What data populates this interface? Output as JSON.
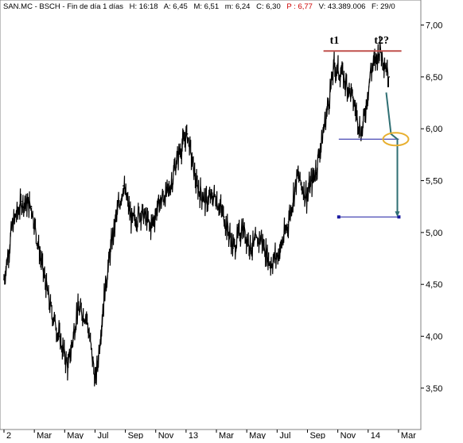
{
  "header": {
    "ticker": "SAN.MC - BSCH - Fin de día 1 días",
    "high": "H: 16:18",
    "open": "A: 6,45",
    "max": "M: 6,51",
    "min": "m: 6,24",
    "close": "C: 6,30",
    "price": "P : 6,77",
    "volume": "V: 43.389.006",
    "date": "F: 29/0"
  },
  "colors": {
    "price_series": "#000000",
    "resistance_line": "#c0504d",
    "support_lines": "#1a1aa0",
    "projection_arrow": "#2f6f73",
    "breakout_ellipse": "#e8b030",
    "header_accent": "#cc0000"
  },
  "chart_data": {
    "type": "line",
    "title": "",
    "xlabel": "",
    "ylabel": "",
    "ylim": [
      3.3,
      7.05
    ],
    "y_ticks": [
      "7,00",
      "6,50",
      "6,00",
      "5,50",
      "5,00",
      "4,50",
      "4,00",
      "3,50"
    ],
    "x_ticks": [
      "2",
      "Mar",
      "May",
      "Jul",
      "Sep",
      "Nov",
      "13",
      "Mar",
      "May",
      "Jul",
      "Sep",
      "Nov",
      "14",
      "Mar"
    ],
    "grid": false,
    "series": [
      {
        "x": [
          "2012-01-02",
          "2012-01-20",
          "2012-02-07",
          "2012-02-25",
          "2012-03-14",
          "2012-04-01",
          "2012-04-19",
          "2012-05-07",
          "2012-05-25",
          "2012-06-12",
          "2012-06-30",
          "2012-07-18",
          "2012-08-05",
          "2012-08-23",
          "2012-09-10",
          "2012-09-28",
          "2012-10-16",
          "2012-11-03",
          "2012-11-21",
          "2012-12-09",
          "2012-12-27",
          "2013-01-14",
          "2013-02-01",
          "2013-02-19",
          "2013-03-09",
          "2013-03-27",
          "2013-04-14",
          "2013-05-02",
          "2013-05-20",
          "2013-06-07",
          "2013-06-25",
          "2013-07-13",
          "2013-07-31",
          "2013-08-18",
          "2013-09-05",
          "2013-09-23",
          "2013-10-11",
          "2013-10-29",
          "2013-11-16",
          "2013-12-04",
          "2013-12-22",
          "2014-01-09",
          "2014-01-27"
        ],
        "values": [
          4.55,
          5.1,
          5.3,
          5.25,
          4.75,
          4.3,
          4.0,
          3.7,
          4.25,
          4.2,
          3.55,
          4.45,
          5.05,
          5.45,
          5.1,
          5.2,
          5.05,
          5.3,
          5.4,
          5.75,
          5.95,
          5.45,
          5.3,
          5.35,
          5.15,
          4.85,
          5.05,
          4.85,
          4.95,
          4.7,
          4.8,
          5.1,
          5.55,
          5.35,
          5.6,
          6.05,
          6.6,
          6.5,
          6.3,
          5.95,
          6.55,
          6.78,
          6.5
        ]
      }
    ],
    "annotations": [
      {
        "text": "t1",
        "x": "2013-10-15",
        "y": 6.82
      },
      {
        "text": "t2?",
        "x": "2014-01-10",
        "y": 6.82
      }
    ],
    "lines": [
      {
        "name": "resistance",
        "x1": "2013-09-20",
        "x2": "2014-02-20",
        "y": 6.75
      },
      {
        "name": "neckline",
        "x1": "2013-10-20",
        "x2": "2014-02-15",
        "y": 5.9
      },
      {
        "name": "target",
        "x1": "2013-10-20",
        "x2": "2014-02-15",
        "y": 5.15
      }
    ],
    "arrow": {
      "x": "2014-02-12",
      "y_from": 6.35,
      "y_to": 5.15
    }
  }
}
